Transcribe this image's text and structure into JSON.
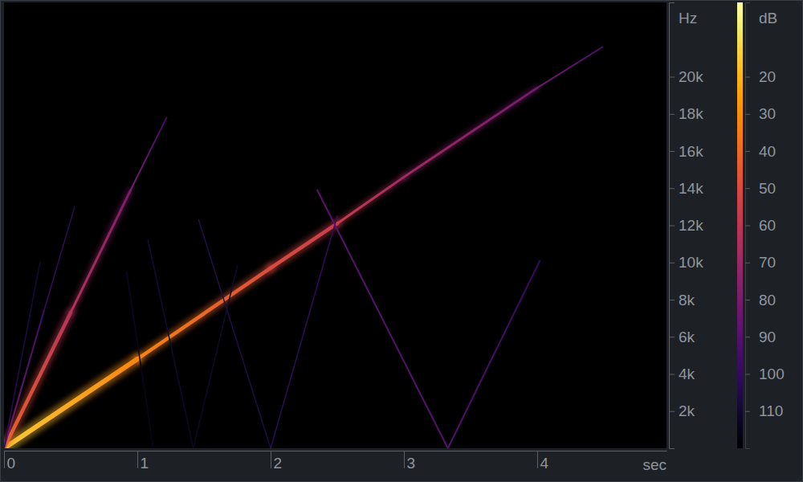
{
  "chart_data": {
    "type": "spectrogram",
    "x_label": "sec",
    "y_label": "Hz",
    "xlim": [
      0,
      4.97
    ],
    "xticks": [
      0,
      1,
      2,
      3,
      4
    ],
    "ylim": [
      0,
      24000
    ],
    "yticks": [
      {
        "value": 2000,
        "label": "2k"
      },
      {
        "value": 4000,
        "label": "4k"
      },
      {
        "value": 6000,
        "label": "6k"
      },
      {
        "value": 8000,
        "label": "8k"
      },
      {
        "value": 10000,
        "label": "10k"
      },
      {
        "value": 12000,
        "label": "12k"
      },
      {
        "value": 14000,
        "label": "14k"
      },
      {
        "value": 16000,
        "label": "16k"
      },
      {
        "value": 18000,
        "label": "18k"
      },
      {
        "value": 20000,
        "label": "20k"
      }
    ],
    "colorbar": {
      "label": "dB",
      "range": [
        0,
        120
      ],
      "ticks": [
        20,
        30,
        40,
        50,
        60,
        70,
        80,
        90,
        100,
        110
      ]
    },
    "series": [
      {
        "x": [
          0,
          1,
          2,
          2.5,
          3,
          4,
          4.49
        ],
        "values": [
          0,
          4800,
          9700,
          12100,
          14600,
          19400,
          21600
        ],
        "levels": [
          15,
          32,
          50,
          56,
          68,
          82,
          92
        ]
      },
      {
        "x": [
          0,
          0.5,
          0.95,
          1.22
        ],
        "values": [
          0,
          7300,
          13900,
          17800
        ],
        "levels": [
          42,
          62,
          80,
          96
        ]
      },
      {
        "x": [
          0,
          0.3,
          0.53
        ],
        "values": [
          0,
          7400,
          13000
        ],
        "levels": [
          80,
          96,
          104
        ]
      },
      {
        "x": [
          0,
          0.27
        ],
        "values": [
          0,
          10000
        ],
        "levels": [
          100,
          110
        ]
      },
      {
        "x": [
          0.92,
          1.12
        ],
        "values": [
          9500,
          0
        ],
        "levels": [
          112,
          114
        ]
      },
      {
        "x": [
          1.08,
          1.42
        ],
        "values": [
          11200,
          0
        ],
        "levels": [
          108,
          112
        ]
      },
      {
        "x": [
          1.42,
          1.75
        ],
        "values": [
          0,
          9800
        ],
        "levels": [
          112,
          110
        ]
      },
      {
        "x": [
          1.46,
          2.0
        ],
        "values": [
          12300,
          0
        ],
        "levels": [
          104,
          106
        ]
      },
      {
        "x": [
          2.0,
          2.5
        ],
        "values": [
          0,
          12500
        ],
        "levels": [
          102,
          100
        ]
      },
      {
        "x": [
          2.35,
          3.33,
          4.02
        ],
        "values": [
          13900,
          0,
          10100
        ],
        "levels": [
          88,
          90,
          100
        ]
      }
    ]
  }
}
